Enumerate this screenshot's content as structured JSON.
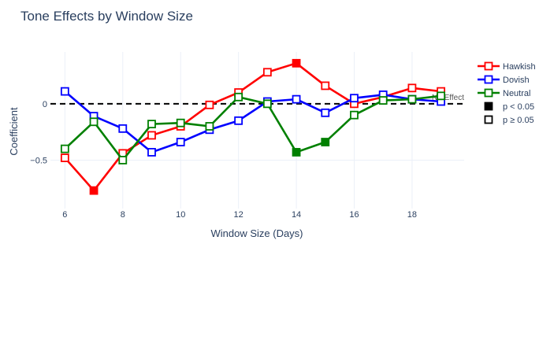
{
  "chart_data": {
    "type": "line",
    "title": "Tone Effects by Window Size",
    "xlabel": "Window Size (Days)",
    "ylabel": "Coefficient",
    "xlim": [
      5.5,
      19.8
    ],
    "ylim": [
      -0.93,
      0.46
    ],
    "xticks": [
      6,
      8,
      10,
      12,
      14,
      16,
      18
    ],
    "yticks": [
      0,
      -0.5
    ],
    "ytick_labels": [
      "0",
      "−0.5"
    ],
    "grid": true,
    "legend_position": "right",
    "reference_line": {
      "y": 0,
      "label": "No Effect",
      "style": "dashed",
      "color": "#000000"
    },
    "x": [
      6,
      7,
      8,
      9,
      10,
      11,
      12,
      13,
      14,
      15,
      16,
      17,
      18,
      19
    ],
    "series": [
      {
        "name": "Hawkish",
        "color": "#ff0000",
        "values": [
          -0.48,
          -0.77,
          -0.44,
          -0.28,
          -0.2,
          -0.01,
          0.1,
          0.28,
          0.36,
          0.16,
          0.0,
          0.06,
          0.14,
          0.11
        ],
        "significant": [
          false,
          true,
          false,
          false,
          false,
          false,
          false,
          false,
          true,
          false,
          false,
          false,
          false,
          false
        ]
      },
      {
        "name": "Dovish",
        "color": "#0000ff",
        "values": [
          0.11,
          -0.11,
          -0.22,
          -0.43,
          -0.34,
          -0.23,
          -0.15,
          0.02,
          0.04,
          -0.08,
          0.05,
          0.08,
          0.04,
          0.02
        ],
        "significant": [
          false,
          false,
          false,
          false,
          false,
          false,
          false,
          false,
          false,
          false,
          false,
          false,
          false,
          false
        ]
      },
      {
        "name": "Neutral",
        "color": "#008000",
        "values": [
          -0.4,
          -0.16,
          -0.5,
          -0.18,
          -0.17,
          -0.2,
          0.06,
          0.0,
          -0.43,
          -0.34,
          -0.1,
          0.03,
          0.04,
          0.07
        ],
        "significant": [
          false,
          false,
          false,
          false,
          false,
          false,
          false,
          false,
          true,
          true,
          false,
          false,
          false,
          false
        ]
      }
    ],
    "marker_legend": [
      {
        "label": "p < 0.05",
        "filled": true
      },
      {
        "label": "p ≥ 0.05",
        "filled": false
      }
    ]
  }
}
